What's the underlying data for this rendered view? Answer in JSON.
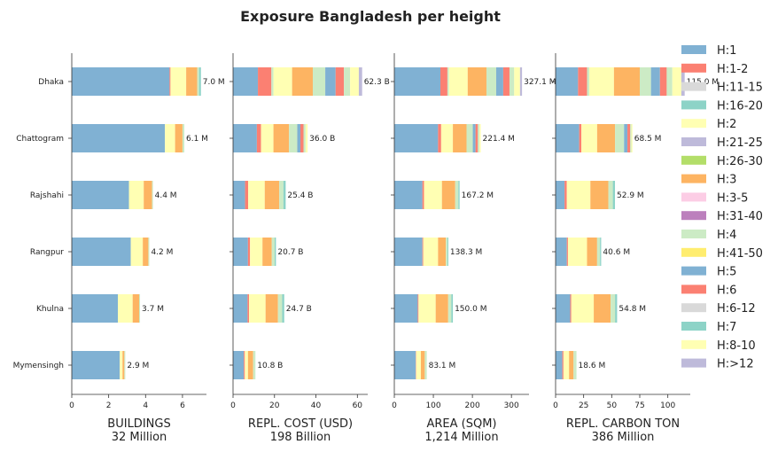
{
  "chart_data": {
    "type": "bar",
    "orientation": "horizontal",
    "stacked": true,
    "title": "Exposure Bangladesh per height",
    "categories": [
      "Dhaka",
      "Chattogram",
      "Rajshahi",
      "Rangpur",
      "Khulna",
      "Mymensingh"
    ],
    "legend": {
      "position": "right",
      "items": [
        {
          "label": "H:1",
          "color": "#80b1d3"
        },
        {
          "label": "H:1-2",
          "color": "#fb8072"
        },
        {
          "label": "H:11-15",
          "color": "#d9d9d9"
        },
        {
          "label": "H:16-20",
          "color": "#8dd3c7"
        },
        {
          "label": "H:2",
          "color": "#ffffb3"
        },
        {
          "label": "H:21-25",
          "color": "#bebada"
        },
        {
          "label": "H:26-30",
          "color": "#b3de69"
        },
        {
          "label": "H:3",
          "color": "#fdb462"
        },
        {
          "label": "H:3-5",
          "color": "#fccde5"
        },
        {
          "label": "H:31-40",
          "color": "#bc80bd"
        },
        {
          "label": "H:4",
          "color": "#ccebc5"
        },
        {
          "label": "H:41-50",
          "color": "#ffed6f"
        },
        {
          "label": "H:5",
          "color": "#80b1d3"
        },
        {
          "label": "H:6",
          "color": "#fb8072"
        },
        {
          "label": "H:6-12",
          "color": "#d9d9d9"
        },
        {
          "label": "H:7",
          "color": "#8dd3c7"
        },
        {
          "label": "H:8-10",
          "color": "#ffffb3"
        },
        {
          "label": "H:>12",
          "color": "#bebada"
        }
      ]
    },
    "panels": [
      {
        "xlabel": "BUILDINGS",
        "sublabel": "32 Million",
        "xlim": [
          0,
          7.3
        ],
        "xticks": [
          0,
          2,
          4,
          6
        ],
        "totals": [
          "7.0 M",
          "6.1 M",
          "4.4 M",
          "4.2 M",
          "3.7 M",
          "2.9 M"
        ],
        "stacks": [
          [
            [
              "#80b1d3",
              5.3
            ],
            [
              "#fb8072",
              0.05
            ],
            [
              "#ffffb3",
              0.85
            ],
            [
              "#fdb462",
              0.6
            ],
            [
              "#ccebc5",
              0.1
            ],
            [
              "#8dd3c7",
              0.1
            ]
          ],
          [
            [
              "#80b1d3",
              5.05
            ],
            [
              "#ffffb3",
              0.55
            ],
            [
              "#fdb462",
              0.4
            ],
            [
              "#ccebc5",
              0.1
            ]
          ],
          [
            [
              "#80b1d3",
              3.1
            ],
            [
              "#ffffb3",
              0.8
            ],
            [
              "#fdb462",
              0.45
            ],
            [
              "#ccebc5",
              0.05
            ]
          ],
          [
            [
              "#80b1d3",
              3.2
            ],
            [
              "#ffffb3",
              0.65
            ],
            [
              "#fdb462",
              0.3
            ],
            [
              "#ccebc5",
              0.05
            ]
          ],
          [
            [
              "#80b1d3",
              2.5
            ],
            [
              "#ffffb3",
              0.8
            ],
            [
              "#fdb462",
              0.35
            ],
            [
              "#ccebc5",
              0.05
            ]
          ],
          [
            [
              "#80b1d3",
              2.6
            ],
            [
              "#ffffb3",
              0.15
            ],
            [
              "#fdb462",
              0.1
            ],
            [
              "#ccebc5",
              0.05
            ]
          ]
        ]
      },
      {
        "xlabel": "REPL. COST (USD)",
        "sublabel": "198 Billion",
        "xlim": [
          0,
          65
        ],
        "xticks": [
          0,
          20,
          40,
          60
        ],
        "totals": [
          "62.3 B",
          "36.0 B",
          "25.4 B",
          "20.7 B",
          "24.7 B",
          "10.8 B"
        ],
        "stacks": [
          [
            [
              "#80b1d3",
              12
            ],
            [
              "#fb8072",
              6.5
            ],
            [
              "#ccebc5",
              1
            ],
            [
              "#ffffb3",
              9
            ],
            [
              "#fdb462",
              10
            ],
            [
              "#ccebc5",
              6
            ],
            [
              "#80b1d3",
              5
            ],
            [
              "#fb8072",
              4
            ],
            [
              "#ccebc5",
              3
            ],
            [
              "#ffffb3",
              4.2
            ],
            [
              "#bebada",
              1.6
            ]
          ],
          [
            [
              "#80b1d3",
              11.5
            ],
            [
              "#fb8072",
              2
            ],
            [
              "#ffffb3",
              6
            ],
            [
              "#fdb462",
              7.5
            ],
            [
              "#ccebc5",
              4
            ],
            [
              "#80b1d3",
              1.5
            ],
            [
              "#fb8072",
              1.5
            ],
            [
              "#ccebc5",
              1
            ],
            [
              "#ffffb3",
              1
            ]
          ],
          [
            [
              "#80b1d3",
              5.8
            ],
            [
              "#fb8072",
              1.5
            ],
            [
              "#ffffb3",
              8
            ],
            [
              "#fdb462",
              7
            ],
            [
              "#ccebc5",
              2
            ],
            [
              "#8dd3c7",
              1.1
            ]
          ],
          [
            [
              "#80b1d3",
              7.2
            ],
            [
              "#fb8072",
              1
            ],
            [
              "#ffffb3",
              6
            ],
            [
              "#fdb462",
              4.5
            ],
            [
              "#ccebc5",
              1.4
            ],
            [
              "#8dd3c7",
              0.6
            ]
          ],
          [
            [
              "#80b1d3",
              7
            ],
            [
              "#fb8072",
              0.7
            ],
            [
              "#ffffb3",
              8
            ],
            [
              "#fdb462",
              6
            ],
            [
              "#ccebc5",
              2
            ],
            [
              "#8dd3c7",
              1
            ]
          ],
          [
            [
              "#80b1d3",
              5.2
            ],
            [
              "#fb8072",
              0.5
            ],
            [
              "#ffffb3",
              1.5
            ],
            [
              "#fdb462",
              2.5
            ],
            [
              "#ccebc5",
              1.1
            ]
          ]
        ]
      },
      {
        "xlabel": "AREA (SQM)",
        "sublabel": "1,214 Million",
        "xlim": [
          0,
          345
        ],
        "xticks": [
          0,
          100,
          200,
          300
        ],
        "totals": [
          "327.1 M",
          "221.4 M",
          "167.2 M",
          "138.3 M",
          "150.0 M",
          "83.1 M"
        ],
        "stacks": [
          [
            [
              "#80b1d3",
              118
            ],
            [
              "#fb8072",
              18
            ],
            [
              "#ccebc5",
              4
            ],
            [
              "#ffffb3",
              48
            ],
            [
              "#fdb462",
              48
            ],
            [
              "#ccebc5",
              25
            ],
            [
              "#80b1d3",
              18
            ],
            [
              "#fb8072",
              16
            ],
            [
              "#ccebc5",
              12
            ],
            [
              "#ffffb3",
              15
            ],
            [
              "#bebada",
              5.1
            ]
          ],
          [
            [
              "#80b1d3",
              112
            ],
            [
              "#fb8072",
              8
            ],
            [
              "#ffffb3",
              30
            ],
            [
              "#fdb462",
              35
            ],
            [
              "#ccebc5",
              16
            ],
            [
              "#80b1d3",
              7
            ],
            [
              "#fb8072",
              6
            ],
            [
              "#ccebc5",
              4
            ],
            [
              "#ffffb3",
              3.4
            ]
          ],
          [
            [
              "#80b1d3",
              72
            ],
            [
              "#fb8072",
              4
            ],
            [
              "#ffffb3",
              46
            ],
            [
              "#fdb462",
              34
            ],
            [
              "#ccebc5",
              8
            ],
            [
              "#8dd3c7",
              3.2
            ]
          ],
          [
            [
              "#80b1d3",
              72
            ],
            [
              "#fb8072",
              2
            ],
            [
              "#ffffb3",
              38
            ],
            [
              "#fdb462",
              20
            ],
            [
              "#ccebc5",
              4
            ],
            [
              "#8dd3c7",
              2.3
            ]
          ],
          [
            [
              "#80b1d3",
              60
            ],
            [
              "#fb8072",
              2
            ],
            [
              "#ffffb3",
              44
            ],
            [
              "#fdb462",
              32
            ],
            [
              "#ccebc5",
              8
            ],
            [
              "#8dd3c7",
              4
            ]
          ],
          [
            [
              "#80b1d3",
              55
            ],
            [
              "#fb8072",
              1
            ],
            [
              "#ffffb3",
              12
            ],
            [
              "#fdb462",
              10
            ],
            [
              "#ccebc5",
              5.1
            ]
          ]
        ]
      },
      {
        "xlabel": "REPL. CARBON TON",
        "sublabel": "386 Million",
        "xlim": [
          0,
          120
        ],
        "xticks": [
          0,
          25,
          50,
          75,
          100
        ],
        "totals": [
          "115.0 M",
          "68.5 M",
          "52.9 M",
          "40.6 M",
          "54.8 M",
          "18.6 M"
        ],
        "stacks": [
          [
            [
              "#80b1d3",
              20
            ],
            [
              "#fb8072",
              8
            ],
            [
              "#ccebc5",
              2
            ],
            [
              "#ffffb3",
              22
            ],
            [
              "#fdb462",
              23
            ],
            [
              "#ccebc5",
              10
            ],
            [
              "#80b1d3",
              8
            ],
            [
              "#fb8072",
              6
            ],
            [
              "#ccebc5",
              5
            ],
            [
              "#ffffb3",
              8
            ],
            [
              "#bebada",
              3
            ]
          ],
          [
            [
              "#80b1d3",
              21
            ],
            [
              "#fb8072",
              2
            ],
            [
              "#ffffb3",
              14
            ],
            [
              "#fdb462",
              16
            ],
            [
              "#ccebc5",
              8
            ],
            [
              "#80b1d3",
              3
            ],
            [
              "#fb8072",
              2.5
            ],
            [
              "#ccebc5",
              1
            ],
            [
              "#ffffb3",
              1
            ]
          ],
          [
            [
              "#80b1d3",
              8
            ],
            [
              "#fb8072",
              2
            ],
            [
              "#ffffb3",
              21
            ],
            [
              "#fdb462",
              16
            ],
            [
              "#ccebc5",
              4
            ],
            [
              "#8dd3c7",
              1.9
            ]
          ],
          [
            [
              "#80b1d3",
              10
            ],
            [
              "#fb8072",
              1
            ],
            [
              "#ffffb3",
              17
            ],
            [
              "#fdb462",
              9
            ],
            [
              "#ccebc5",
              2.6
            ],
            [
              "#8dd3c7",
              1
            ]
          ],
          [
            [
              "#80b1d3",
              13
            ],
            [
              "#fb8072",
              1
            ],
            [
              "#ffffb3",
              20
            ],
            [
              "#fdb462",
              15
            ],
            [
              "#ccebc5",
              4
            ],
            [
              "#8dd3c7",
              1.8
            ]
          ],
          [
            [
              "#80b1d3",
              6
            ],
            [
              "#fb8072",
              1
            ],
            [
              "#ffffb3",
              5
            ],
            [
              "#fdb462",
              4
            ],
            [
              "#ccebc5",
              2.6
            ]
          ]
        ]
      }
    ]
  }
}
